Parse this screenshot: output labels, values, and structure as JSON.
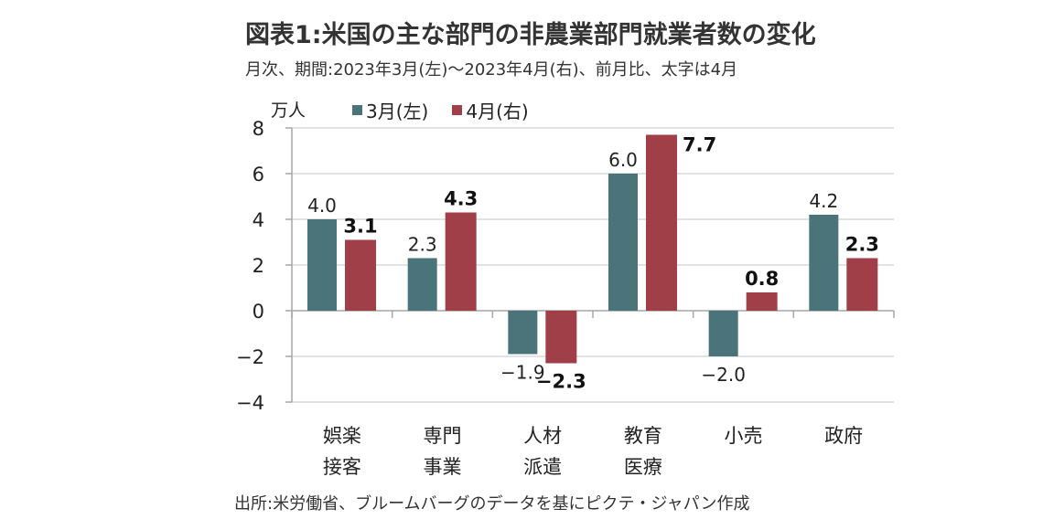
{
  "title": "図表1:米国の主な部門の非農業部門就業者数の変化",
  "subtitle": "月次、期間:2023年3月(左)〜2023年4月(右)、前月比、太字は4月",
  "source": "出所:米労働省、ブルームバーグのデータを基にピクテ・ジャパン作成",
  "chart_data": {
    "type": "bar",
    "title": "図表1:米国の主な部門の非農業部門就業者数の変化",
    "ylabel": "万人",
    "xlabel": "",
    "ylim": [
      -4,
      8
    ],
    "yticks": [
      8,
      6,
      4,
      2,
      0,
      -2,
      -4
    ],
    "ytick_labels": [
      "8",
      "6",
      "4",
      "2",
      "0",
      "−2",
      "−4"
    ],
    "grid": true,
    "legend_position": "top",
    "categories": [
      [
        "娯楽",
        "接客"
      ],
      [
        "専門",
        "事業"
      ],
      [
        "人材",
        "派遣"
      ],
      [
        "教育",
        "医療"
      ],
      [
        "小売"
      ],
      [
        "政府"
      ]
    ],
    "series": [
      {
        "name": "3月(左)",
        "color": "#4a7479",
        "values": [
          4.0,
          2.3,
          -1.9,
          6.0,
          -2.0,
          4.2
        ],
        "labels": [
          "4.0",
          "2.3",
          "−1.9",
          "6.0",
          "−2.0",
          "4.2"
        ]
      },
      {
        "name": "4月(右)",
        "color": "#a03f48",
        "values": [
          3.1,
          4.3,
          -2.3,
          7.7,
          0.8,
          2.3
        ],
        "labels": [
          "3.1",
          "4.3",
          "−2.3",
          "7.7",
          "0.8",
          "2.3"
        ]
      }
    ]
  }
}
